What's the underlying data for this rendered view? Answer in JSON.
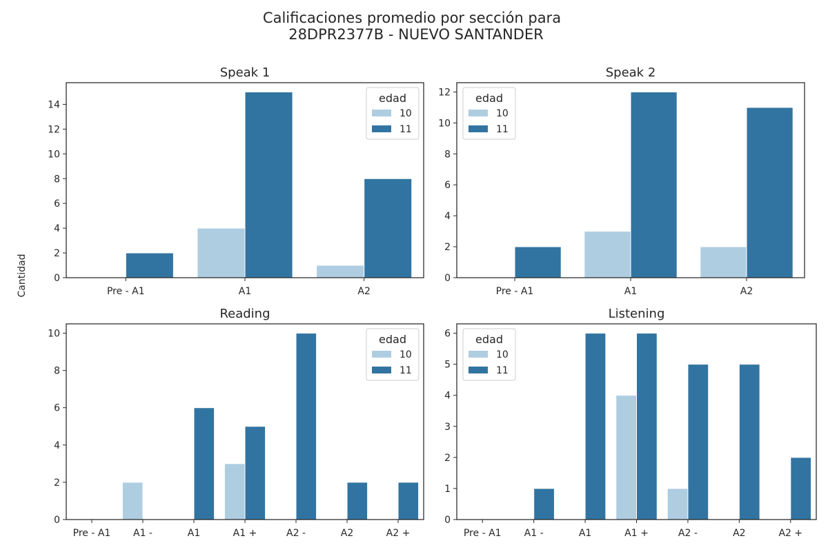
{
  "figure": {
    "title_line1": "Calificaciones promedio por sección para",
    "title_line2": "28DPR2377B - NUEVO SANTANDER",
    "ylabel": "Cantidad",
    "colors": {
      "age10": "#aecde1",
      "age11": "#3274a1"
    }
  },
  "chart_data": [
    {
      "type": "bar",
      "title": "Speak 1",
      "categories": [
        "Pre - A1",
        "A1",
        "A2"
      ],
      "series": [
        {
          "name": "10",
          "values": [
            0,
            4,
            1
          ]
        },
        {
          "name": "11",
          "values": [
            2,
            15,
            8
          ]
        }
      ],
      "ylim": [
        0,
        15.75
      ],
      "yticks": [
        0,
        2,
        4,
        6,
        8,
        10,
        12,
        14
      ],
      "legend": {
        "title": "edad",
        "position": "top-right"
      }
    },
    {
      "type": "bar",
      "title": "Speak 2",
      "categories": [
        "Pre - A1",
        "A1",
        "A2"
      ],
      "series": [
        {
          "name": "10",
          "values": [
            0,
            3,
            2
          ]
        },
        {
          "name": "11",
          "values": [
            2,
            12,
            11
          ]
        }
      ],
      "ylim": [
        0,
        12.6
      ],
      "yticks": [
        0,
        2,
        4,
        6,
        8,
        10,
        12
      ],
      "legend": {
        "title": "edad",
        "position": "top-left"
      }
    },
    {
      "type": "bar",
      "title": "Reading",
      "categories": [
        "Pre - A1",
        "A1 -",
        "A1",
        "A1 +",
        "A2 -",
        "A2",
        "A2 +"
      ],
      "series": [
        {
          "name": "10",
          "values": [
            0,
            2,
            0,
            3,
            0,
            0,
            0
          ]
        },
        {
          "name": "11",
          "values": [
            0,
            0,
            6,
            5,
            10,
            2,
            2
          ]
        }
      ],
      "ylim": [
        0,
        10.5
      ],
      "yticks": [
        0,
        2,
        4,
        6,
        8,
        10
      ],
      "legend": {
        "title": "edad",
        "position": "top-right"
      }
    },
    {
      "type": "bar",
      "title": "Listening",
      "categories": [
        "Pre - A1",
        "A1 -",
        "A1",
        "A1 +",
        "A2 -",
        "A2",
        "A2 +"
      ],
      "series": [
        {
          "name": "10",
          "values": [
            0,
            0,
            0,
            4,
            1,
            0,
            0
          ]
        },
        {
          "name": "11",
          "values": [
            0,
            1,
            6,
            6,
            5,
            5,
            2
          ]
        }
      ],
      "ylim": [
        0,
        6.3
      ],
      "yticks": [
        0,
        1,
        2,
        3,
        4,
        5,
        6
      ],
      "legend": {
        "title": "edad",
        "position": "top-left"
      }
    }
  ]
}
